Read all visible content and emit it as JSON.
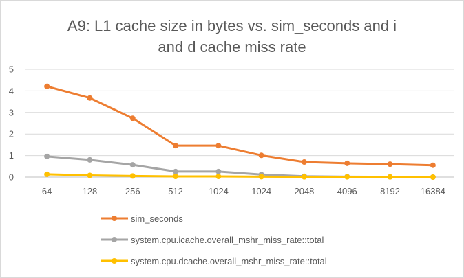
{
  "chart_data": {
    "type": "line",
    "title_lines": [
      "A9: L1 cache size in bytes vs. sim_seconds and i",
      "and d cache miss rate"
    ],
    "categories": [
      "64",
      "128",
      "256",
      "512",
      "1024",
      "1024",
      "2048",
      "4096",
      "8192",
      "16384"
    ],
    "ylim": [
      0,
      5
    ],
    "yticks": [
      "0",
      "1",
      "2",
      "3",
      "4",
      "5"
    ],
    "grid": true,
    "legend_position": "bottom",
    "series": [
      {
        "name": "sim_seconds",
        "color": "#ED7D31",
        "values": [
          4.21,
          3.67,
          2.73,
          1.46,
          1.46,
          1.01,
          0.7,
          0.64,
          0.6,
          0.55
        ]
      },
      {
        "name": "system.cpu.icache.overall_mshr_miss_rate::total",
        "color": "#A5A5A5",
        "values": [
          0.96,
          0.8,
          0.57,
          0.26,
          0.26,
          0.12,
          0.04,
          0.02,
          0.01,
          0.0
        ]
      },
      {
        "name": "system.cpu.dcache.overall_mshr_miss_rate::total",
        "color": "#FFC000",
        "values": [
          0.13,
          0.08,
          0.05,
          0.03,
          0.03,
          0.02,
          0.01,
          0.01,
          0.01,
          0.0
        ]
      }
    ]
  }
}
